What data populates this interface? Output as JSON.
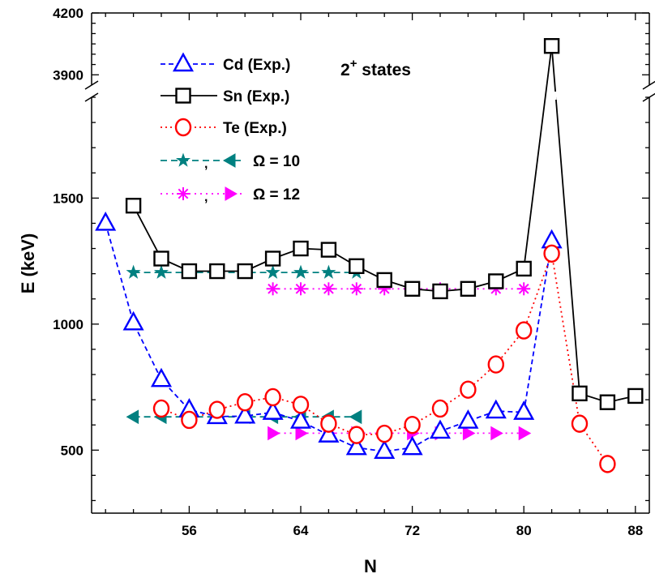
{
  "chart_data": {
    "type": "line",
    "title": "",
    "annotation": {
      "base": "2",
      "sup": "+",
      "rest": " states"
    },
    "xlabel": "N",
    "ylabel": "E (keV)",
    "xlim": [
      49,
      89
    ],
    "ylim_lower": [
      250,
      1900
    ],
    "ylim_upper": [
      3850,
      4200
    ],
    "axis_break": [
      1900,
      3850
    ],
    "x_ticks": [
      56,
      64,
      72,
      80,
      88
    ],
    "y_ticks_lower": [
      500,
      1000,
      1500
    ],
    "y_ticks_upper": [
      3900,
      4200
    ],
    "grid": false,
    "legend_position": "top-left",
    "series": [
      {
        "name": "Cd (Exp.)",
        "color": "#0000ff",
        "marker": "triangle",
        "dash": "6,4",
        "x": [
          50,
          52,
          54,
          56,
          58,
          60,
          62,
          64,
          66,
          68,
          70,
          72,
          74,
          76,
          78,
          80,
          82
        ],
        "y": [
          1400,
          1005,
          780,
          660,
          633,
          635,
          650,
          615,
          560,
          510,
          495,
          510,
          575,
          615,
          655,
          650,
          1330
        ]
      },
      {
        "name": "Sn (Exp.)",
        "color": "#000000",
        "marker": "square",
        "dash": "",
        "x": [
          52,
          54,
          56,
          58,
          60,
          62,
          64,
          66,
          68,
          70,
          72,
          74,
          76,
          78,
          80,
          82,
          84,
          86,
          88
        ],
        "y": [
          1470,
          1260,
          1210,
          1210,
          1210,
          1260,
          1300,
          1295,
          1230,
          1175,
          1140,
          1130,
          1140,
          1170,
          1220,
          4040,
          725,
          690,
          715
        ]
      },
      {
        "name": "Te (Exp.)",
        "color": "#ff0000",
        "marker": "circle",
        "dash": "2,4",
        "x": [
          54,
          56,
          58,
          60,
          62,
          64,
          66,
          68,
          70,
          72,
          74,
          76,
          78,
          80,
          82,
          84,
          86
        ],
        "y": [
          665,
          620,
          660,
          690,
          710,
          680,
          605,
          560,
          565,
          600,
          665,
          740,
          840,
          975,
          1280,
          605,
          445
        ]
      },
      {
        "name": "Ω = 10",
        "color": "#008080",
        "marker": "star+left-triangle",
        "dash": "8,5",
        "x": [
          52,
          54,
          56,
          58,
          60,
          62,
          64,
          66,
          68
        ],
        "y_star": [
          1205,
          1205,
          1205,
          1205,
          1205,
          1205,
          1205,
          1205,
          1205
        ],
        "y_tri": [
          632,
          632,
          632,
          632,
          632,
          632,
          632,
          632,
          632
        ]
      },
      {
        "name": "Ω = 12",
        "color": "#ff00ff",
        "marker": "asterisk+right-triangle",
        "dash": "2,5",
        "x": [
          62,
          64,
          66,
          68,
          70,
          72,
          74,
          76,
          78,
          80
        ],
        "y_star": [
          1140,
          1140,
          1140,
          1140,
          1140,
          1140,
          1140,
          1140,
          1140,
          1140
        ],
        "y_tri": [
          567,
          567,
          567,
          567,
          567,
          567,
          567,
          567,
          567,
          567
        ]
      }
    ],
    "legend_entries": [
      {
        "label": "Cd (Exp.)"
      },
      {
        "label": "Sn (Exp.)"
      },
      {
        "label": "Te (Exp.)"
      },
      {
        "label": "Ω = 10",
        "sep": ","
      },
      {
        "label": "Ω = 12",
        "sep": ","
      }
    ]
  }
}
